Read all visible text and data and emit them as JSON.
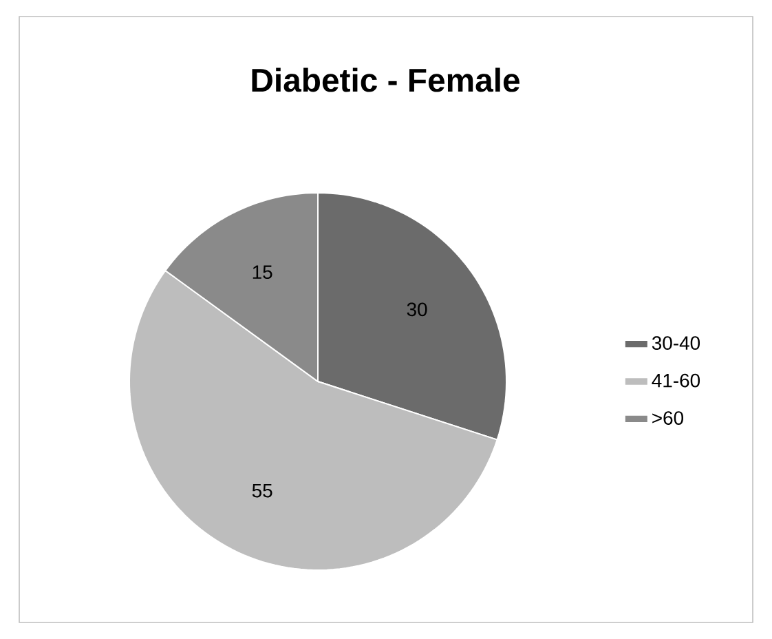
{
  "chart_data": {
    "type": "pie",
    "title": "Diabetic - Female",
    "categories": [
      "30-40",
      "41-60",
      ">60"
    ],
    "values": [
      30,
      55,
      15
    ],
    "colors": [
      "#6b6b6b",
      "#bdbdbd",
      "#8a8a8a"
    ],
    "data_labels": true,
    "legend": "right"
  }
}
